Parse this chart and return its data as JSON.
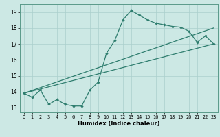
{
  "xlabel": "Humidex (Indice chaleur)",
  "xlim": [
    -0.5,
    23.5
  ],
  "ylim": [
    12.7,
    19.5
  ],
  "xticks": [
    0,
    1,
    2,
    3,
    4,
    5,
    6,
    7,
    8,
    9,
    10,
    11,
    12,
    13,
    14,
    15,
    16,
    17,
    18,
    19,
    20,
    21,
    22,
    23
  ],
  "yticks": [
    13,
    14,
    15,
    16,
    17,
    18,
    19
  ],
  "bg_color": "#cce8e4",
  "grid_color": "#aacfcc",
  "line_color": "#2e7d6e",
  "line1_x": [
    0,
    1,
    2,
    3,
    4,
    5,
    6,
    7,
    8,
    9,
    10,
    11,
    12,
    13,
    14,
    15,
    16,
    17,
    18,
    19,
    20,
    21,
    22,
    23
  ],
  "line1_y": [
    13.9,
    13.65,
    14.1,
    13.2,
    13.5,
    13.2,
    13.1,
    13.1,
    14.1,
    14.6,
    16.4,
    17.2,
    18.5,
    19.1,
    18.8,
    18.5,
    18.3,
    18.2,
    18.1,
    18.05,
    17.8,
    17.1,
    17.5,
    17.0
  ],
  "line2_x": [
    0,
    23
  ],
  "line2_y": [
    13.9,
    17.0
  ],
  "line3_x": [
    0,
    23
  ],
  "line3_y": [
    13.9,
    18.0
  ]
}
